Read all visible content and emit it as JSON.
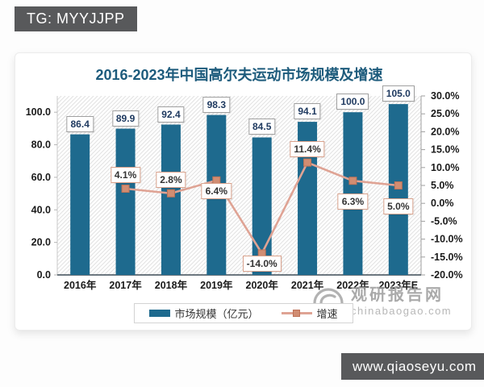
{
  "badges": {
    "tg": "TG: MYYJJPP",
    "site": "www.qiaoseyu.com"
  },
  "watermark": {
    "name": "观研报告网",
    "domain": "chinabaogao.com"
  },
  "chart_data": {
    "type": "bar",
    "subtype": "combo-bar-line-dual-axis",
    "title": "2016-2023年中国高尔夫运动市场规模及增速",
    "categories": [
      "2016年",
      "2017年",
      "2018年",
      "2019年",
      "2020年",
      "2021年",
      "2022年",
      "2023年E"
    ],
    "series": [
      {
        "name": "市场规模（亿元）",
        "type": "bar",
        "axis": "left",
        "color": "#1e6a8e",
        "values": [
          86.4,
          89.9,
          92.4,
          98.3,
          84.5,
          94.1,
          100.0,
          105.0
        ],
        "labels": [
          "86.4",
          "89.9",
          "92.4",
          "98.3",
          "84.5",
          "94.1",
          "100.0",
          "105.0"
        ]
      },
      {
        "name": "增速",
        "type": "line",
        "axis": "right",
        "color": "#dfa394",
        "marker_color": "#d18d72",
        "marker_edge": "#be7257",
        "values": [
          null,
          4.1,
          2.8,
          6.4,
          -14.0,
          11.4,
          6.3,
          5.0
        ],
        "labels": [
          null,
          "4.1%",
          "2.8%",
          "6.4%",
          "-14.0%",
          "11.4%",
          "6.3%",
          "5.0%"
        ],
        "label_pos": [
          null,
          "above",
          "above",
          "below",
          "below",
          "above",
          "below-far",
          "below-far"
        ]
      }
    ],
    "left_axis": {
      "min": 0,
      "max": 110,
      "tick_values": [
        0,
        20,
        40,
        60,
        80,
        100
      ],
      "tick_labels": [
        "0.0",
        "20.0",
        "40.0",
        "60.0",
        "80.0",
        "100.0"
      ]
    },
    "right_axis": {
      "min": -20,
      "max": 30,
      "tick_values": [
        30,
        25,
        20,
        15,
        10,
        5,
        0,
        -5,
        -10,
        -15,
        -20
      ],
      "tick_labels": [
        "30.0%",
        "25.0%",
        "20.0%",
        "15.0%",
        "10.0%",
        "5.0%",
        "0.0%",
        "-5.0%",
        "-10.0%",
        "-15.0%",
        "-20.0%"
      ]
    },
    "legend": [
      {
        "label": "市场规模（亿元）",
        "swatch": "bar"
      },
      {
        "label": "增速",
        "swatch": "line"
      }
    ],
    "legend_position": "bottom",
    "grid": false,
    "plot_background": "diagonal-hatch"
  }
}
